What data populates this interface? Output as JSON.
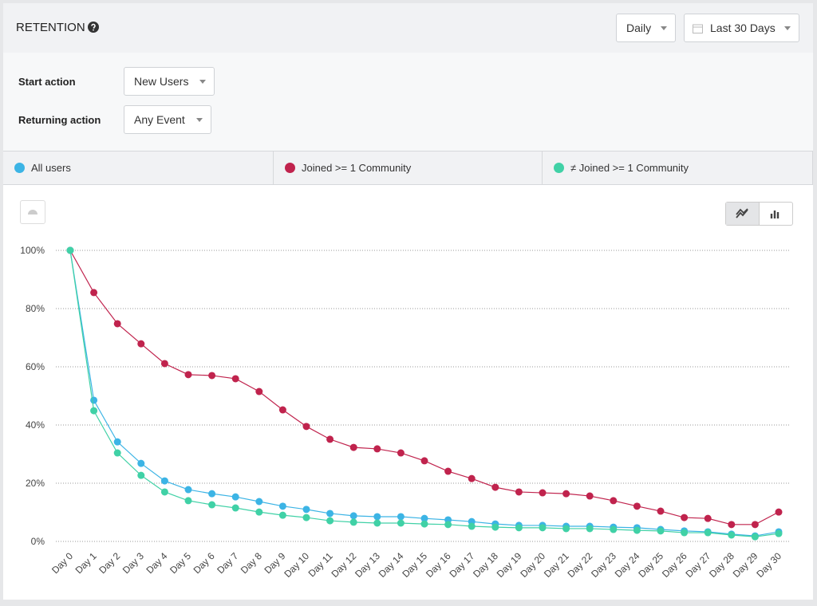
{
  "header": {
    "title": "RETENTION",
    "interval": "Daily",
    "range": "Last 30 Days"
  },
  "controls": {
    "start_label": "Start action",
    "start_value": "New Users",
    "return_label": "Returning action",
    "return_value": "Any Event"
  },
  "chart_data": {
    "type": "line",
    "categories": [
      "Day 0",
      "Day 1",
      "Day 2",
      "Day 3",
      "Day 4",
      "Day 5",
      "Day 6",
      "Day 7",
      "Day 8",
      "Day 9",
      "Day 10",
      "Day 11",
      "Day 12",
      "Day 13",
      "Day 14",
      "Day 15",
      "Day 16",
      "Day 17",
      "Day 18",
      "Day 19",
      "Day 20",
      "Day 21",
      "Day 22",
      "Day 23",
      "Day 24",
      "Day 25",
      "Day 26",
      "Day 27",
      "Day 28",
      "Day 29",
      "Day 30"
    ],
    "series": [
      {
        "name": "All users",
        "color": "#3cb4e5",
        "values": [
          100,
          48.5,
          34.2,
          26.8,
          20.8,
          17.8,
          16.4,
          15.3,
          13.7,
          12.1,
          11.0,
          9.6,
          8.8,
          8.5,
          8.5,
          7.9,
          7.4,
          6.8,
          6.0,
          5.5,
          5.5,
          5.2,
          5.2,
          4.9,
          4.7,
          4.1,
          3.6,
          3.3,
          2.5,
          1.9,
          3.3
        ]
      },
      {
        "name": "Joined >= 1 Community",
        "color": "#c0234d",
        "values": [
          100,
          85.5,
          74.8,
          67.9,
          61.1,
          57.3,
          57.0,
          55.9,
          51.5,
          45.2,
          39.5,
          35.1,
          32.3,
          31.8,
          30.4,
          27.7,
          24.1,
          21.6,
          18.6,
          17.0,
          16.7,
          16.4,
          15.6,
          14.0,
          12.1,
          10.4,
          8.2,
          7.9,
          5.8,
          5.8,
          10.1
        ]
      },
      {
        "name": "≠ Joined >= 1 Community",
        "color": "#40d1a6",
        "values": [
          100,
          44.9,
          30.4,
          22.7,
          17.0,
          14.0,
          12.6,
          11.5,
          10.1,
          9.0,
          8.2,
          7.1,
          6.6,
          6.3,
          6.3,
          6.0,
          5.8,
          5.2,
          4.9,
          4.7,
          4.7,
          4.4,
          4.4,
          4.1,
          3.8,
          3.6,
          3.0,
          3.0,
          2.2,
          1.6,
          2.7
        ]
      }
    ],
    "ylim": [
      0,
      100
    ],
    "yticks": [
      {
        "value": 0,
        "label": "0%"
      },
      {
        "value": 20,
        "label": "20%"
      },
      {
        "value": 40,
        "label": "40%"
      },
      {
        "value": 60,
        "label": "60%"
      },
      {
        "value": 80,
        "label": "80%"
      },
      {
        "value": 100,
        "label": "100%"
      }
    ],
    "grid": true
  }
}
